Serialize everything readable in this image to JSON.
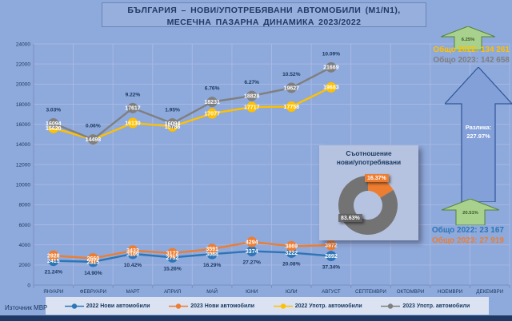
{
  "title": {
    "line1": "БЪЛГАРИЯ – НОВИ/УПОТРЕБЯВАНИ АВТОМОБИЛИ (M1/N1),",
    "line2": "МЕСЕЧНА ПАЗАРНА ДИНАМИКА 2023/2022"
  },
  "source": "Източник МВР",
  "colors": {
    "background": "#8EA9DB",
    "new_2022": "#2E75B6",
    "new_2023": "#ED7D31",
    "used_2022": "#FFC000",
    "used_2023": "#7F7F7F",
    "navy_text": "#17375E",
    "green_arrow": "#A9D18E",
    "big_arrow": "#83A0D8"
  },
  "chart_data": {
    "type": "line",
    "title": "БЪЛГАРИЯ – НОВИ/УПОТРЕБЯВАНИ АВТОМОБИЛИ (M1/N1), МЕСЕЧНА ПАЗАРНА ДИНАМИКА 2023/2022",
    "grid": true,
    "legend_position": "bottom",
    "categories": [
      "ЯНУАРИ",
      "ФЕВРУАРИ",
      "МАРТ",
      "АПРИЛ",
      "МАЙ",
      "ЮНИ",
      "ЮЛИ",
      "АВГУСТ",
      "СЕПТЕМВРИ",
      "ОКТОМВРИ",
      "НОЕМВРИ",
      "ДЕКЕМВРИ"
    ],
    "y_axis": {
      "min": 0,
      "max": 24000,
      "step": 2000
    },
    "series": [
      {
        "name": "2022 Нови автомобили",
        "color": "#2E75B6",
        "values": [
          2415,
          2315,
          3109,
          2752,
          3088,
          3374,
          3222,
          2892
        ]
      },
      {
        "name": "2023 Нови автомобили",
        "color": "#ED7D31",
        "values": [
          2928,
          2660,
          3433,
          3172,
          3591,
          4294,
          3869,
          3972
        ]
      },
      {
        "name": "2022 Употр. автомобили",
        "color": "#FFC000",
        "values": [
          15620,
          14490,
          16130,
          15786,
          17077,
          17717,
          17758,
          19683
        ],
        "hide_labels": [
          1
        ]
      },
      {
        "name": "2023 Употр. автомобили",
        "color": "#7F7F7F",
        "values": [
          16094,
          14498,
          17617,
          16094,
          18231,
          18828,
          19627,
          21669
        ]
      }
    ],
    "growth_labels_new": [
      "21.24%",
      "14.90%",
      "10.42%",
      "15.26%",
      "16.29%",
      "27.27%",
      "20.08%",
      "37.34%"
    ],
    "growth_labels_used": [
      "3.03%",
      "0.06%",
      "9.22%",
      "1.95%",
      "6.76%",
      "6.27%",
      "10.52%",
      "10.09%"
    ]
  },
  "annotations": {
    "used": {
      "arrow_pct": "6.25%",
      "total_2022": "Общо 2022: 134 261",
      "total_2023": "Общо 2023: 142 658"
    },
    "difference": {
      "line1": "Разлика:",
      "line2": "227.97%"
    },
    "new": {
      "arrow_pct": "20.51%",
      "total_2022": "Общо 2022: 23 167",
      "total_2023": "Общо 2023: 27 919"
    }
  },
  "donut": {
    "title_line1": "Съотношение",
    "title_line2": "нови/употребявани",
    "slices": [
      {
        "name": "нови",
        "label": "16.37%",
        "value": 16.37,
        "color": "#ED7D31"
      },
      {
        "name": "употребявани",
        "label": "83.63%",
        "value": 83.63,
        "color": "#737373"
      }
    ]
  }
}
